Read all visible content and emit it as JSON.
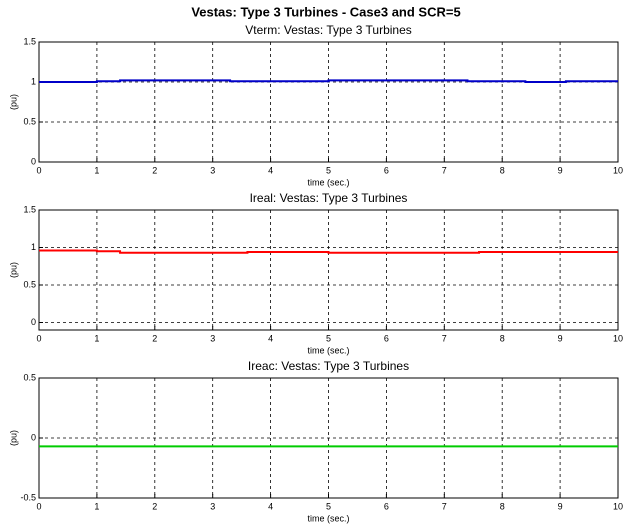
{
  "title": "Vestas: Type 3 Turbines - Case3 and SCR=5",
  "chart_data": [
    {
      "type": "line",
      "title": "Vterm: Vestas: Type 3 Turbines",
      "xlabel": "time (sec.)",
      "ylabel": "(pu)",
      "x": [
        0,
        1,
        1,
        1.4,
        1.4,
        3.3,
        3.3,
        5,
        5,
        7.4,
        7.4,
        8.4,
        8.4,
        9.1,
        9.1,
        10
      ],
      "values": [
        1.0,
        1.0,
        1.01,
        1.01,
        1.02,
        1.02,
        1.01,
        1.01,
        1.02,
        1.02,
        1.01,
        1.01,
        1.0,
        1.0,
        1.01,
        1.01
      ],
      "color": "#0000c8",
      "xlim": [
        0,
        10
      ],
      "xticks": [
        0,
        1,
        2,
        3,
        4,
        5,
        6,
        7,
        8,
        9,
        10
      ],
      "ylim": [
        0,
        1.5
      ],
      "yticks": [
        0,
        0.5,
        1,
        1.5
      ],
      "grid": true
    },
    {
      "type": "line",
      "title": "Ireal: Vestas: Type 3 Turbines",
      "xlabel": "time (sec.)",
      "ylabel": "(pu)",
      "x": [
        0,
        1,
        1,
        1.4,
        1.4,
        3.6,
        3.6,
        5,
        5,
        7.6,
        7.6,
        10
      ],
      "values": [
        0.96,
        0.96,
        0.95,
        0.95,
        0.93,
        0.93,
        0.94,
        0.94,
        0.93,
        0.93,
        0.94,
        0.94
      ],
      "color": "#ff0000",
      "xlim": [
        0,
        10
      ],
      "xticks": [
        0,
        1,
        2,
        3,
        4,
        5,
        6,
        7,
        8,
        9,
        10
      ],
      "ylim": [
        -0.1,
        1.5
      ],
      "yticks": [
        0,
        0.5,
        1,
        1.5
      ],
      "grid": true
    },
    {
      "type": "line",
      "title": "Ireac: Vestas: Type 3 Turbines",
      "xlabel": "time (sec.)",
      "ylabel": "(pu)",
      "x": [
        0,
        10
      ],
      "values": [
        -0.07,
        -0.07
      ],
      "color": "#00cc00",
      "xlim": [
        0,
        10
      ],
      "xticks": [
        0,
        1,
        2,
        3,
        4,
        5,
        6,
        7,
        8,
        9,
        10
      ],
      "ylim": [
        -0.5,
        0.5
      ],
      "yticks": [
        -0.5,
        0,
        0.5
      ],
      "grid": true
    }
  ]
}
